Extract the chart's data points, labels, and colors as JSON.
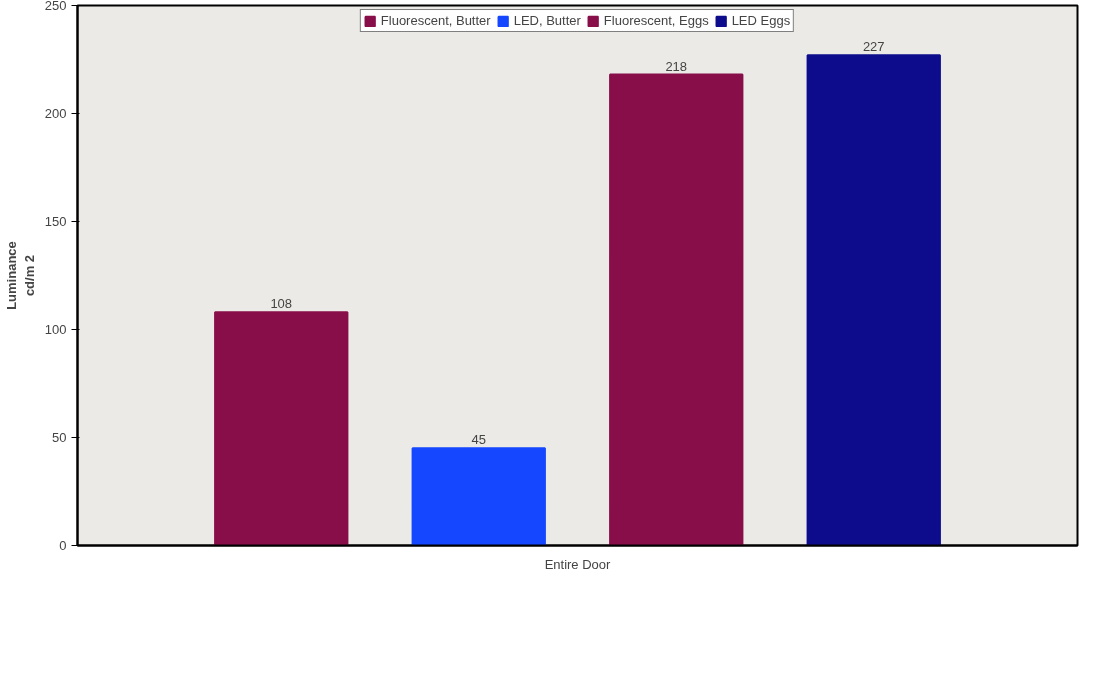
{
  "chart_data": {
    "type": "bar",
    "ylabel": "Luminance\ncd/m 2",
    "categories": [
      "Entire Door"
    ],
    "series": [
      {
        "name": "Fluorescent, Butter",
        "color": "#880e4a",
        "values": [
          108
        ]
      },
      {
        "name": "LED, Butter",
        "color": "#1447ff",
        "values": [
          45
        ]
      },
      {
        "name": "Fluorescent, Eggs",
        "color": "#880e4a",
        "values": [
          218
        ]
      },
      {
        "name": "LED Eggs",
        "color": "#0c0c8c",
        "values": [
          227
        ]
      }
    ],
    "ylim": [
      0,
      250
    ],
    "yticks": [
      0,
      50,
      100,
      150,
      200,
      250
    ],
    "data_labels": true,
    "legend": "top",
    "grid": false
  }
}
